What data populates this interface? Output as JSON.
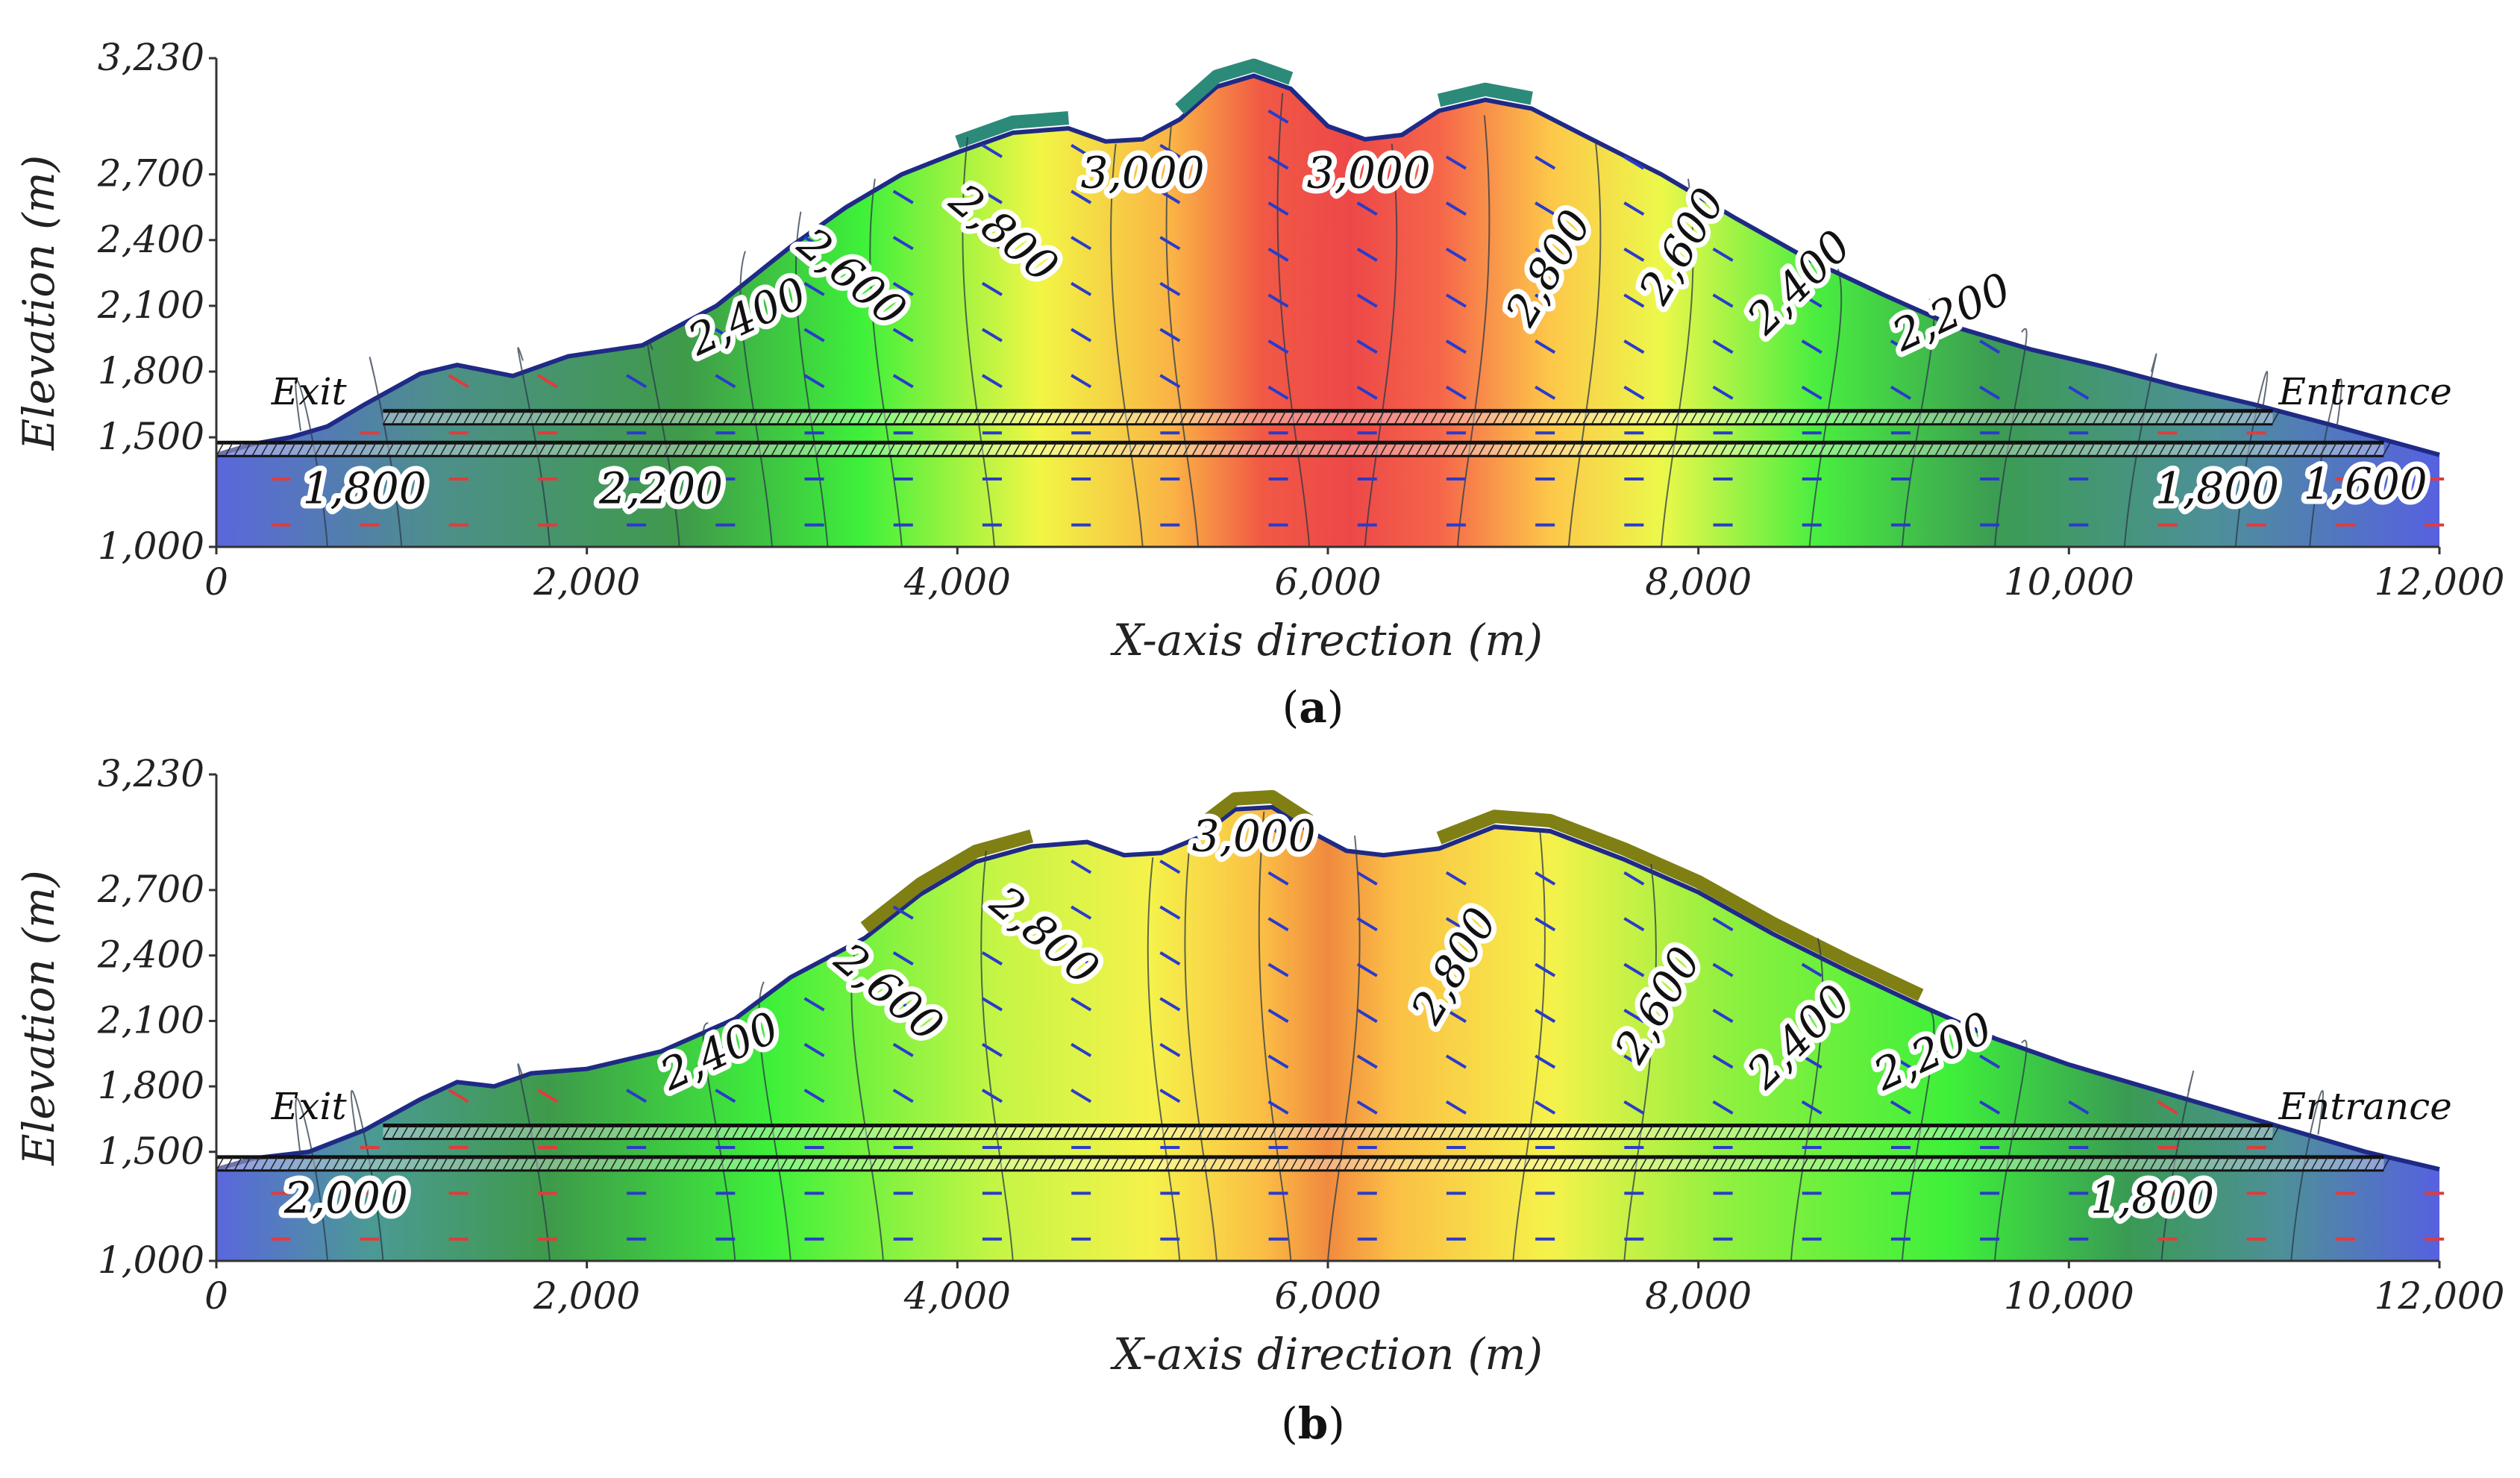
{
  "chart_data": [
    {
      "type": "heatmap",
      "panel_label": "a",
      "xlabel": "X-axis direction (m)",
      "ylabel": "Elevation (m)",
      "xlim": [
        0,
        12000
      ],
      "ylim": [
        1000,
        3230
      ],
      "xticks": [
        "0",
        "2,000",
        "4,000",
        "6,000",
        "8,000",
        "10,000",
        "12,000"
      ],
      "yticks": [
        "1,000",
        "1,500",
        "1,800",
        "2,100",
        "2,400",
        "2,700",
        "3,230"
      ],
      "markers": [
        {
          "text": "Exit",
          "x": 500,
          "y": 1650
        },
        {
          "text": "Entrance",
          "x": 11600,
          "y": 1650
        }
      ],
      "contour_labels": [
        {
          "text": "1,800",
          "x": 800,
          "y": 1200,
          "angle": 0
        },
        {
          "text": "2,200",
          "x": 2400,
          "y": 1200,
          "angle": 0
        },
        {
          "text": "2,400",
          "x": 2900,
          "y": 1990,
          "angle": -25
        },
        {
          "text": "2,600",
          "x": 3380,
          "y": 2180,
          "angle": 40
        },
        {
          "text": "2,800",
          "x": 4200,
          "y": 2380,
          "angle": 40
        },
        {
          "text": "3,000",
          "x": 5000,
          "y": 2640,
          "angle": 0
        },
        {
          "text": "3,000",
          "x": 6220,
          "y": 2640,
          "angle": 0
        },
        {
          "text": "2,800",
          "x": 7260,
          "y": 2240,
          "angle": -60
        },
        {
          "text": "2,600",
          "x": 7980,
          "y": 2340,
          "angle": -60
        },
        {
          "text": "2,400",
          "x": 8600,
          "y": 2160,
          "angle": -45
        },
        {
          "text": "2,200",
          "x": 9400,
          "y": 2010,
          "angle": -25
        },
        {
          "text": "1,800",
          "x": 10800,
          "y": 1200,
          "angle": 0
        },
        {
          "text": "1,600",
          "x": 11600,
          "y": 1220,
          "angle": 0
        }
      ],
      "gradient": [
        {
          "pos": 0.0,
          "color": "#5a67dd"
        },
        {
          "pos": 0.1,
          "color": "#4d8f8a"
        },
        {
          "pos": 0.21,
          "color": "#3f9a4a"
        },
        {
          "pos": 0.29,
          "color": "#3ef03a"
        },
        {
          "pos": 0.37,
          "color": "#f1f645"
        },
        {
          "pos": 0.43,
          "color": "#fab345"
        },
        {
          "pos": 0.47,
          "color": "#f15945"
        },
        {
          "pos": 0.51,
          "color": "#ed4848"
        },
        {
          "pos": 0.55,
          "color": "#f5654a"
        },
        {
          "pos": 0.6,
          "color": "#fdc749"
        },
        {
          "pos": 0.65,
          "color": "#ecf84a"
        },
        {
          "pos": 0.72,
          "color": "#49ee40"
        },
        {
          "pos": 0.8,
          "color": "#3b9c52"
        },
        {
          "pos": 0.9,
          "color": "#4e8f9a"
        },
        {
          "pos": 1.0,
          "color": "#5661e0"
        }
      ]
    },
    {
      "type": "heatmap",
      "panel_label": "b",
      "xlabel": "X-axis direction (m)",
      "ylabel": "Elevation (m)",
      "xlim": [
        0,
        12000
      ],
      "ylim": [
        1000,
        3230
      ],
      "xticks": [
        "0",
        "2,000",
        "4,000",
        "6,000",
        "8,000",
        "10,000",
        "12,000"
      ],
      "yticks": [
        "1,000",
        "1,500",
        "1,800",
        "2,100",
        "2,400",
        "2,700",
        "3,230"
      ],
      "markers": [
        {
          "text": "Exit",
          "x": 500,
          "y": 1650
        },
        {
          "text": "Entrance",
          "x": 11600,
          "y": 1650
        }
      ],
      "contour_labels": [
        {
          "text": "2,000",
          "x": 700,
          "y": 1220,
          "angle": 0
        },
        {
          "text": "2,400",
          "x": 2750,
          "y": 1900,
          "angle": -25
        },
        {
          "text": "2,600",
          "x": 3580,
          "y": 2180,
          "angle": 40
        },
        {
          "text": "2,800",
          "x": 4420,
          "y": 2440,
          "angle": 40
        },
        {
          "text": "3,000",
          "x": 5600,
          "y": 2880,
          "angle": 0
        },
        {
          "text": "2,800",
          "x": 6750,
          "y": 2320,
          "angle": -60
        },
        {
          "text": "2,600",
          "x": 7850,
          "y": 2140,
          "angle": -60
        },
        {
          "text": "2,400",
          "x": 8600,
          "y": 1980,
          "angle": -45
        },
        {
          "text": "2,200",
          "x": 9300,
          "y": 1900,
          "angle": -25
        },
        {
          "text": "1,800",
          "x": 10450,
          "y": 1220,
          "angle": 0
        }
      ],
      "gradient": [
        {
          "pos": 0.0,
          "color": "#5a67dd"
        },
        {
          "pos": 0.07,
          "color": "#4b9a94"
        },
        {
          "pos": 0.15,
          "color": "#3e9a4a"
        },
        {
          "pos": 0.25,
          "color": "#3ef03a"
        },
        {
          "pos": 0.35,
          "color": "#c4f545"
        },
        {
          "pos": 0.42,
          "color": "#f5f24a"
        },
        {
          "pos": 0.47,
          "color": "#fbbf45"
        },
        {
          "pos": 0.5,
          "color": "#f08a3f"
        },
        {
          "pos": 0.53,
          "color": "#fbbf45"
        },
        {
          "pos": 0.6,
          "color": "#f5f24a"
        },
        {
          "pos": 0.68,
          "color": "#8ff03f"
        },
        {
          "pos": 0.78,
          "color": "#3ef03a"
        },
        {
          "pos": 0.86,
          "color": "#3a9a54"
        },
        {
          "pos": 0.93,
          "color": "#4e8f9a"
        },
        {
          "pos": 1.0,
          "color": "#5661e0"
        }
      ]
    }
  ]
}
